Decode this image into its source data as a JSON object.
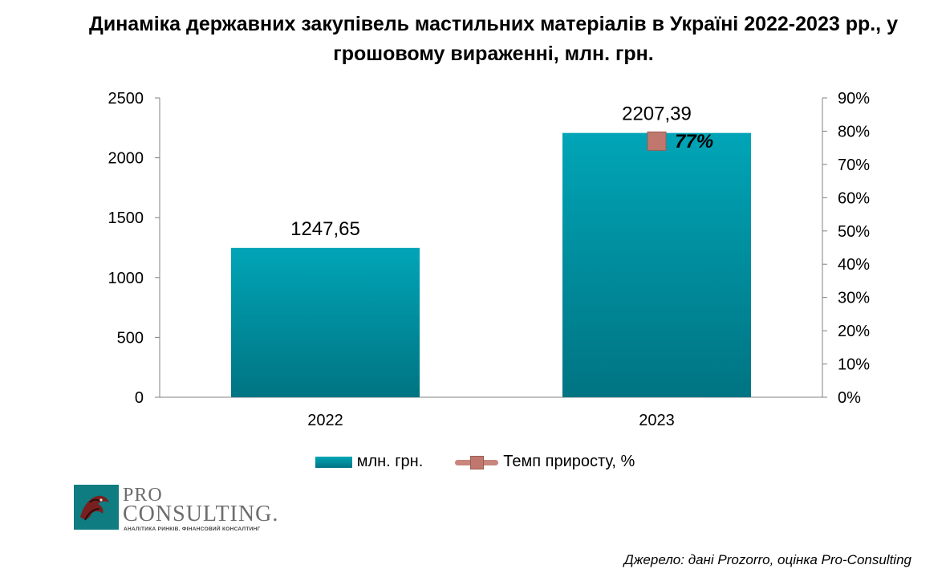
{
  "title": "Динаміка державних закупівель мастильних матеріалів в Україні 2022-2023 рр., у грошовому вираженні, млн. грн.",
  "source": "Джерело: дані Prozorro, оцінка Pro-Consulting",
  "logo": {
    "line1": "PRO",
    "line2": "CONSULTING.",
    "tagline": "АНАЛІТИКА РИНКІВ. ФІНАНСОВИЙ КОНСАЛТИНГ"
  },
  "colors": {
    "bar_top": "#00a5b7",
    "bar_bottom": "#007482",
    "growth_marker": "#c0786e",
    "growth_line": "#c8867c"
  },
  "chart_data": {
    "type": "bar",
    "categories": [
      "2022",
      "2023"
    ],
    "series": [
      {
        "name": "млн. грн.",
        "type": "bar",
        "axis": "left",
        "values": [
          1247.65,
          2207.39
        ],
        "labels": [
          "1247,65",
          "2207,39"
        ]
      },
      {
        "name": "Темп приросту, %",
        "type": "line",
        "axis": "right",
        "values": [
          null,
          77
        ],
        "labels": [
          "",
          "77%"
        ]
      }
    ],
    "y_left": {
      "min": 0,
      "max": 2500,
      "ticks": [
        "0",
        "500",
        "1000",
        "1500",
        "2000",
        "2500"
      ]
    },
    "y_right": {
      "min": 0,
      "max": 90,
      "ticks": [
        "0%",
        "10%",
        "20%",
        "30%",
        "40%",
        "50%",
        "60%",
        "70%",
        "80%",
        "90%"
      ]
    },
    "grid": false,
    "legend_position": "bottom"
  }
}
